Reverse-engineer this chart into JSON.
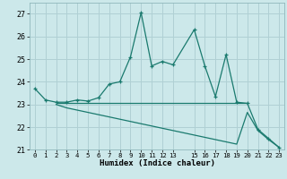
{
  "title": "",
  "xlabel": "Humidex (Indice chaleur)",
  "xlim": [
    -0.5,
    23.5
  ],
  "ylim": [
    21,
    27.5
  ],
  "yticks": [
    21,
    22,
    23,
    24,
    25,
    26,
    27
  ],
  "ytick_labels": [
    "21",
    "22",
    "23",
    "24",
    "25",
    "26",
    "27"
  ],
  "xtick_positions": [
    0,
    1,
    2,
    3,
    4,
    5,
    6,
    7,
    8,
    9,
    10,
    11,
    12,
    13,
    15,
    16,
    17,
    18,
    19,
    20,
    21,
    22,
    23
  ],
  "xtick_labels": [
    "0",
    "1",
    "2",
    "3",
    "4",
    "5",
    "6",
    "7",
    "8",
    "9",
    "10",
    "11",
    "12",
    "13",
    "15",
    "16",
    "17",
    "18",
    "19",
    "20",
    "21",
    "22",
    "23"
  ],
  "bg_color": "#cce8ea",
  "grid_color": "#b0d0d4",
  "line_color": "#1a7a6e",
  "line1_x": [
    0,
    1,
    2,
    3,
    4,
    5,
    6,
    7,
    8,
    9,
    10,
    11,
    12,
    13,
    15,
    16,
    17,
    18,
    19,
    20,
    21,
    22,
    23
  ],
  "line1_y": [
    23.7,
    23.2,
    23.1,
    23.1,
    23.2,
    23.15,
    23.3,
    23.9,
    24.0,
    25.1,
    27.05,
    24.7,
    24.9,
    24.75,
    26.3,
    24.7,
    23.35,
    25.2,
    23.1,
    23.05,
    21.9,
    21.5,
    21.1
  ],
  "line2_x": [
    2,
    3,
    4,
    5,
    6,
    7,
    8,
    9,
    10,
    11,
    12,
    13,
    15,
    16,
    17,
    18,
    19,
    20
  ],
  "line2_y": [
    23.05,
    23.05,
    23.05,
    23.05,
    23.05,
    23.05,
    23.05,
    23.05,
    23.05,
    23.05,
    23.05,
    23.05,
    23.05,
    23.05,
    23.05,
    23.05,
    23.05,
    23.05
  ],
  "line3_x": [
    2,
    3,
    4,
    5,
    6,
    7,
    8,
    9,
    10,
    11,
    12,
    13,
    15,
    16,
    17,
    18,
    19,
    20,
    21,
    22,
    23
  ],
  "line3_y": [
    23.0,
    22.85,
    22.75,
    22.65,
    22.55,
    22.45,
    22.35,
    22.25,
    22.15,
    22.05,
    21.95,
    21.85,
    21.65,
    21.55,
    21.45,
    21.35,
    21.25,
    22.65,
    21.85,
    21.45,
    21.1
  ]
}
